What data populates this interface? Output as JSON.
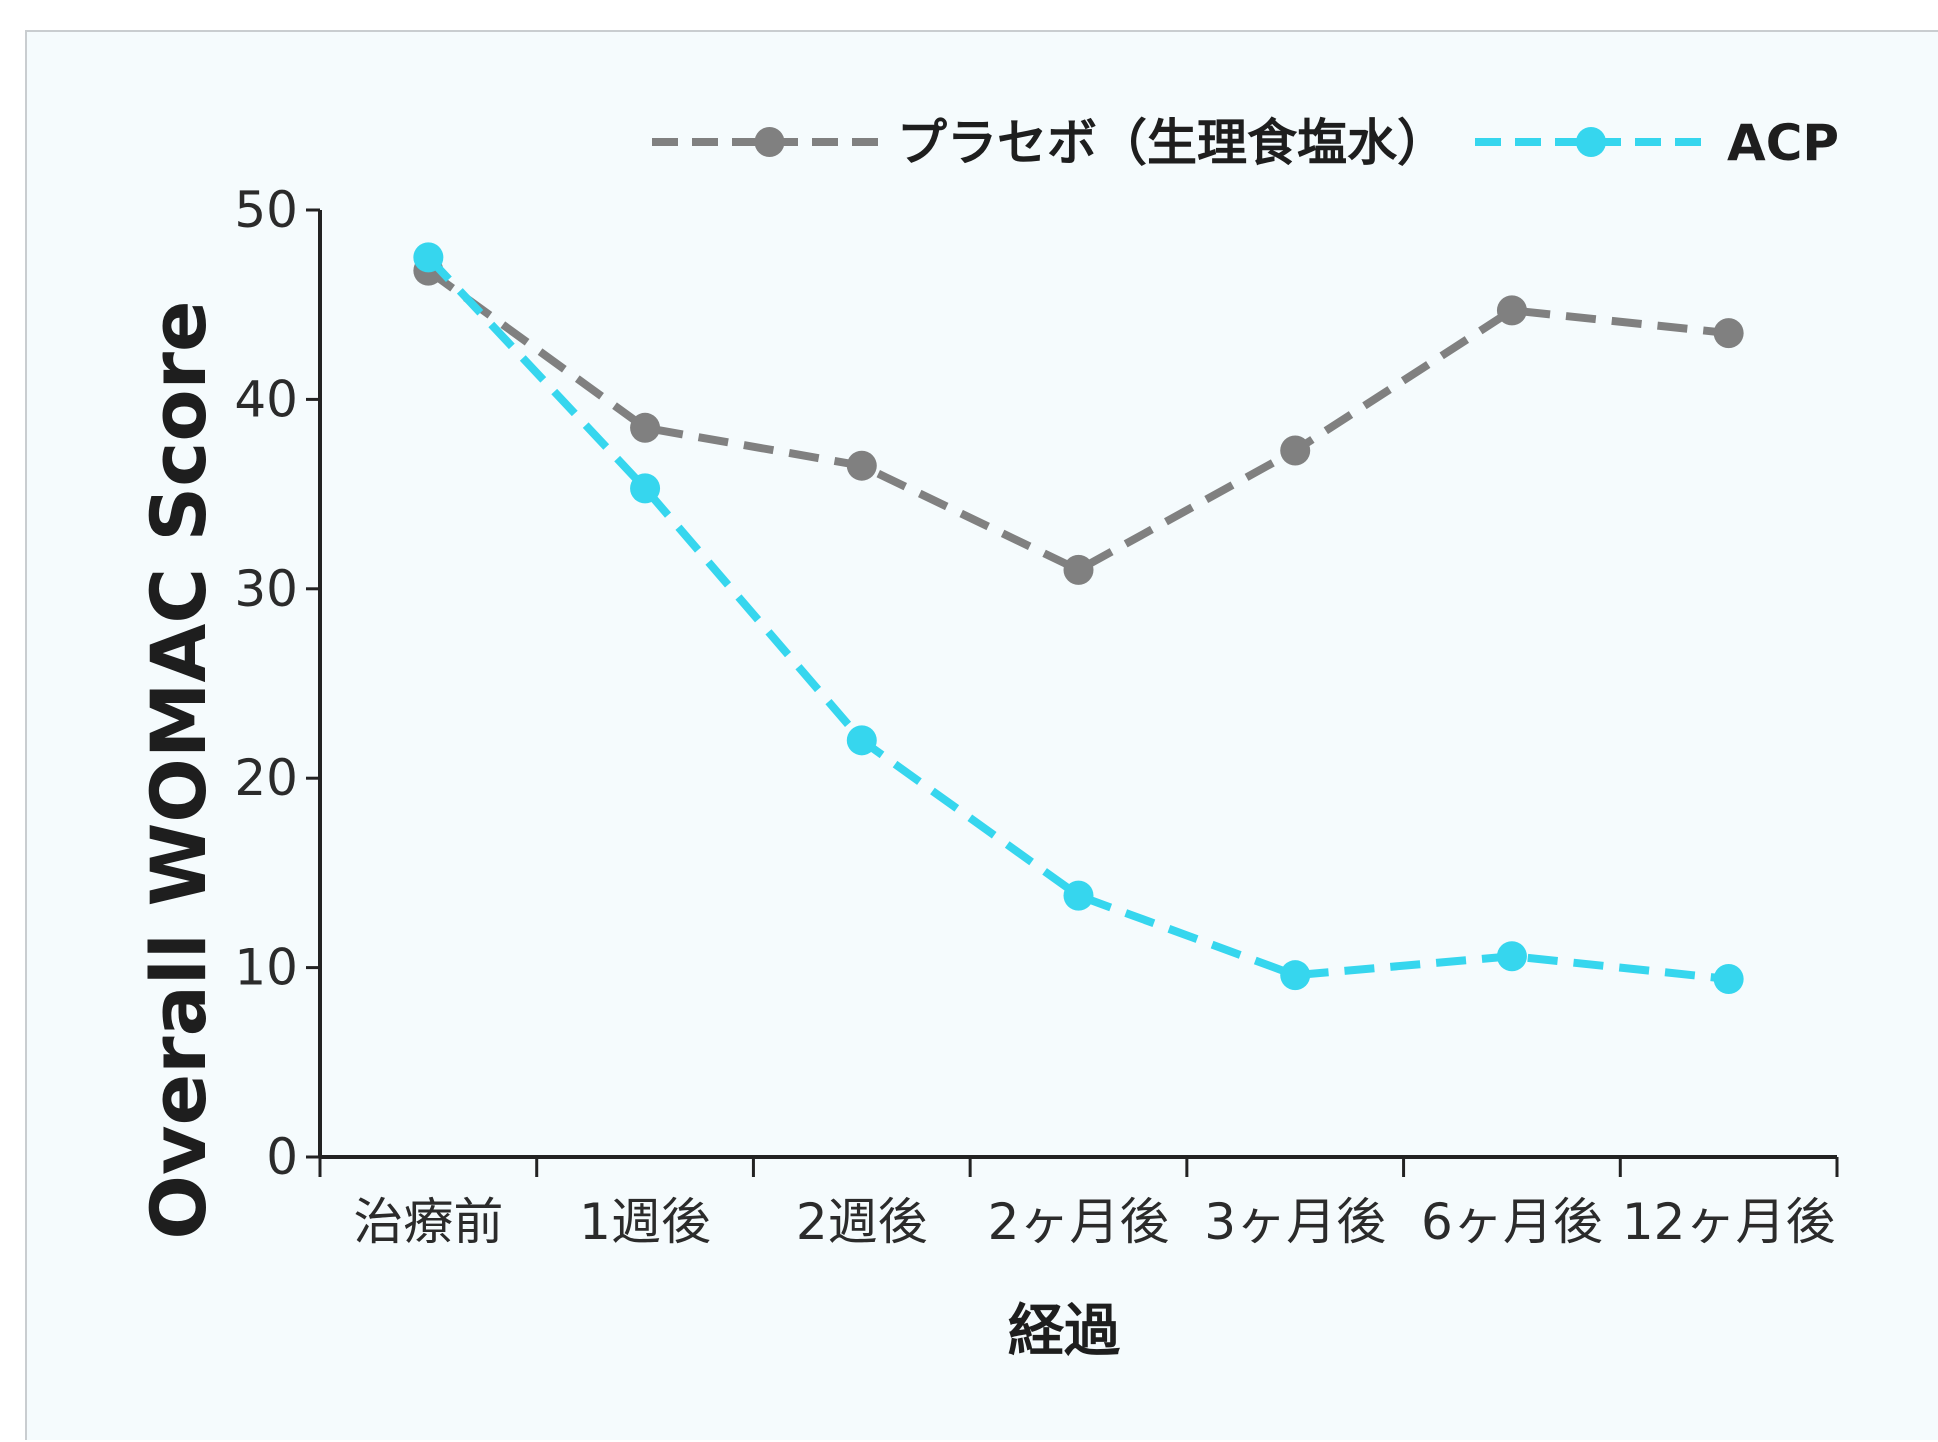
{
  "chart_data": {
    "type": "line",
    "title": "",
    "xlabel": "経過",
    "ylabel": "Overall WOMAC Score",
    "categories": [
      "治療前",
      "1週後",
      "2週後",
      "2ヶ月後",
      "3ヶ月後",
      "6ヶ月後",
      "12ヶ月後"
    ],
    "y_ticks": [
      "0",
      "10",
      "20",
      "30",
      "40",
      "50"
    ],
    "ylim": [
      0,
      50
    ],
    "grid": false,
    "legend_position": "top-right",
    "series": [
      {
        "name": "プラセボ（生理食塩水）",
        "color": "#808080",
        "line_style": "dashed",
        "marker": "circle",
        "values": [
          46.8,
          38.5,
          36.5,
          31.0,
          37.3,
          44.7,
          43.5
        ]
      },
      {
        "name": "ACP",
        "color": "#36d6ee",
        "line_style": "dashed",
        "marker": "circle",
        "values": [
          47.5,
          35.3,
          22.0,
          13.8,
          9.6,
          10.6,
          9.4
        ]
      }
    ]
  }
}
